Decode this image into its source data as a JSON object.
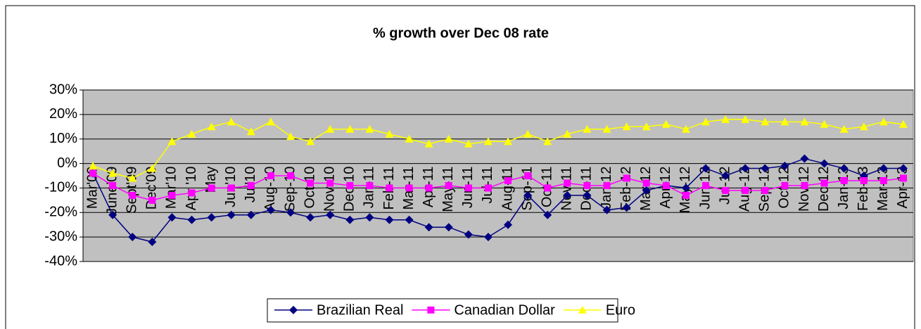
{
  "chart_data": {
    "type": "line",
    "title": "% growth over Dec 08 rate",
    "categories": [
      "Mar'09",
      "June'09",
      "Sept'09",
      "Dec'09",
      "Mar'10",
      "Apr '10",
      "May",
      "Jun'10",
      "Jul'10",
      "Aug-10",
      "Sep-10",
      "Oct-10",
      "Nov-10",
      "Dec-10",
      "Jan-11",
      "Feb-11",
      "Mar-11",
      "Apr-11",
      "May-11",
      "Jun-11",
      "Jul-11",
      "Aug-11",
      "Sep-11",
      "Oct-11",
      "Nov-11",
      "Dec-11",
      "Jan-12",
      "Feb-12",
      "Mar-12",
      "Apr-12",
      "May-12",
      "Jun-12",
      "Jul-12",
      "Aug-12",
      "Sep-12",
      "Oct-12",
      "Nov-12",
      "Dec-12",
      "Jan-13",
      "Feb-13",
      "Mar-13",
      "Apr-13"
    ],
    "series": [
      {
        "name": "Brazilian Real",
        "color": "#000080",
        "marker": "diamond",
        "values": [
          -4,
          -21,
          -30,
          -32,
          -22,
          -23,
          -22,
          -21,
          -21,
          -19,
          -20,
          -22,
          -21,
          -23,
          -22,
          -23,
          -23,
          -26,
          -26,
          -29,
          -30,
          -25,
          -13,
          -21,
          -13,
          -13,
          -19,
          -18,
          -11,
          -9,
          -10,
          -2,
          -5,
          -2,
          -2,
          -1,
          2,
          0,
          -2,
          -5,
          -2,
          -2
        ]
      },
      {
        "name": "Canadian Dollar",
        "color": "#ff00ff",
        "marker": "square",
        "values": [
          -4,
          -9,
          -13,
          -15,
          -13,
          -12,
          -10,
          -10,
          -9,
          -5,
          -5,
          -8,
          -8,
          -9,
          -9,
          -10,
          -10,
          -10,
          -9,
          -10,
          -10,
          -7,
          -5,
          -10,
          -8,
          -9,
          -9,
          -6,
          -8,
          -9,
          -13,
          -9,
          -11,
          -11,
          -11,
          -9,
          -9,
          -8,
          -7,
          -7,
          -7,
          -6
        ]
      },
      {
        "name": "Euro",
        "color": "#ffff00",
        "marker": "triangle",
        "values": [
          -1,
          -4,
          -6,
          -2,
          9,
          12,
          15,
          17,
          13,
          17,
          11,
          9,
          14,
          14,
          14,
          12,
          10,
          8,
          10,
          8,
          9,
          9,
          12,
          9,
          12,
          14,
          14,
          15,
          15,
          16,
          14,
          17,
          18,
          18,
          17,
          17,
          17,
          16,
          14,
          15,
          17,
          16
        ]
      }
    ],
    "ylim": [
      -40,
      30
    ],
    "yticks": [
      {
        "value": -40,
        "label": "-40%"
      },
      {
        "value": -30,
        "label": "-30%"
      },
      {
        "value": -20,
        "label": "-20%"
      },
      {
        "value": -10,
        "label": "-10%"
      },
      {
        "value": 0,
        "label": "0%"
      },
      {
        "value": 10,
        "label": "10%"
      },
      {
        "value": 20,
        "label": "20%"
      },
      {
        "value": 30,
        "label": "30%"
      }
    ],
    "grid": true,
    "plot_background": "#c0c0c0",
    "legend": "bottom"
  }
}
